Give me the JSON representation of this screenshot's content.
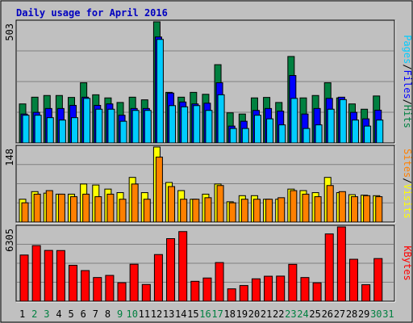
{
  "title": "Daily usage for April 2016",
  "colors": {
    "background": "#C0C0C0",
    "title_text": "#0000C0",
    "hits": "#00CCFF",
    "files": "#0000FF",
    "pages": "#008040",
    "visits": "#FFFF00",
    "sites": "#FF8000",
    "kbytes": "#FF0000",
    "weekend_day": "#008040"
  },
  "right_labels": {
    "top": [
      {
        "text": "Pages",
        "color": "#00CCFF"
      },
      {
        "text": "/",
        "color": "#000000"
      },
      {
        "text": "Files",
        "color": "#0000FF"
      },
      {
        "text": "/",
        "color": "#000000"
      },
      {
        "text": "Hits",
        "color": "#008040"
      }
    ],
    "mid": [
      {
        "text": "Sites",
        "color": "#FF8000"
      },
      {
        "text": "/",
        "color": "#000000"
      },
      {
        "text": "Visits",
        "color": "#FFFF00"
      }
    ],
    "bottom": [
      {
        "text": "KBytes",
        "color": "#FF0000"
      }
    ]
  },
  "chart_data": [
    {
      "type": "bar",
      "title": "Daily usage for April 2016",
      "max_label": "503",
      "ylim": [
        0,
        503
      ],
      "categories": [
        "1",
        "2",
        "3",
        "4",
        "5",
        "6",
        "7",
        "8",
        "9",
        "10",
        "11",
        "12",
        "13",
        "14",
        "15",
        "16",
        "17",
        "18",
        "19",
        "20",
        "21",
        "22",
        "23",
        "24",
        "25",
        "26",
        "27",
        "28",
        "29",
        "30",
        "31"
      ],
      "series": [
        {
          "name": "Hits",
          "values": [
            162,
            190,
            197,
            197,
            189,
            250,
            200,
            187,
            168,
            190,
            179,
            503,
            210,
            190,
            210,
            202,
            325,
            125,
            120,
            187,
            189,
            168,
            359,
            187,
            197,
            250,
            187,
            162,
            140,
            195,
            0
          ]
        },
        {
          "name": "Files",
          "values": [
            120,
            127,
            143,
            143,
            156,
            190,
            156,
            162,
            115,
            143,
            143,
            440,
            207,
            170,
            162,
            165,
            250,
            70,
            90,
            135,
            143,
            132,
            280,
            120,
            143,
            185,
            190,
            127,
            100,
            136,
            0
          ]
        },
        {
          "name": "Pages",
          "values": [
            115,
            115,
            105,
            95,
            105,
            185,
            140,
            140,
            90,
            135,
            135,
            430,
            155,
            150,
            155,
            135,
            200,
            60,
            60,
            115,
            100,
            75,
            185,
            60,
            75,
            140,
            180,
            95,
            70,
            95,
            0
          ]
        }
      ]
    },
    {
      "type": "bar",
      "max_label": "148",
      "ylim": [
        0,
        148
      ],
      "categories": [
        "1",
        "2",
        "3",
        "4",
        "5",
        "6",
        "7",
        "8",
        "9",
        "10",
        "11",
        "12",
        "13",
        "14",
        "15",
        "16",
        "17",
        "18",
        "19",
        "20",
        "21",
        "22",
        "23",
        "24",
        "25",
        "26",
        "27",
        "28",
        "29",
        "30",
        "31"
      ],
      "series": [
        {
          "name": "Visits",
          "values": [
            45,
            60,
            57,
            55,
            55,
            75,
            73,
            65,
            58,
            88,
            58,
            148,
            78,
            62,
            45,
            55,
            75,
            40,
            52,
            52,
            45,
            45,
            65,
            62,
            58,
            88,
            58,
            54,
            53,
            52,
            0
          ]
        },
        {
          "name": "Sites",
          "values": [
            38,
            55,
            62,
            55,
            50,
            55,
            50,
            55,
            45,
            75,
            45,
            128,
            70,
            45,
            45,
            48,
            72,
            38,
            45,
            45,
            45,
            48,
            62,
            55,
            50,
            72,
            60,
            50,
            52,
            50,
            0
          ]
        }
      ]
    },
    {
      "type": "bar",
      "max_label": "6305",
      "ylim": [
        0,
        6305
      ],
      "categories": [
        "1",
        "2",
        "3",
        "4",
        "5",
        "6",
        "7",
        "8",
        "9",
        "10",
        "11",
        "12",
        "13",
        "14",
        "15",
        "16",
        "17",
        "18",
        "19",
        "20",
        "21",
        "22",
        "23",
        "24",
        "25",
        "26",
        "27",
        "28",
        "29",
        "30",
        "31"
      ],
      "series": [
        {
          "name": "KBytes",
          "values": [
            3920,
            4720,
            4310,
            4300,
            3050,
            2600,
            2010,
            2190,
            1570,
            3140,
            1420,
            3960,
            5310,
            5910,
            1690,
            1970,
            3280,
            1050,
            1330,
            1900,
            2120,
            2130,
            3130,
            2010,
            1560,
            5710,
            6305,
            3560,
            1400,
            3620,
            0
          ]
        }
      ]
    }
  ],
  "day_labels": [
    {
      "text": "1",
      "weekend": false
    },
    {
      "text": "2",
      "weekend": true
    },
    {
      "text": "3",
      "weekend": true
    },
    {
      "text": "4",
      "weekend": false
    },
    {
      "text": "5",
      "weekend": false
    },
    {
      "text": "6",
      "weekend": false
    },
    {
      "text": "7",
      "weekend": false
    },
    {
      "text": "8",
      "weekend": false
    },
    {
      "text": "9",
      "weekend": true
    },
    {
      "text": "10",
      "weekend": true
    },
    {
      "text": "11",
      "weekend": false
    },
    {
      "text": "12",
      "weekend": false
    },
    {
      "text": "13",
      "weekend": false
    },
    {
      "text": "14",
      "weekend": false
    },
    {
      "text": "15",
      "weekend": false
    },
    {
      "text": "16",
      "weekend": true
    },
    {
      "text": "17",
      "weekend": true
    },
    {
      "text": "18",
      "weekend": false
    },
    {
      "text": "19",
      "weekend": false
    },
    {
      "text": "20",
      "weekend": false
    },
    {
      "text": "21",
      "weekend": false
    },
    {
      "text": "22",
      "weekend": false
    },
    {
      "text": "23",
      "weekend": true
    },
    {
      "text": "24",
      "weekend": true
    },
    {
      "text": "25",
      "weekend": false
    },
    {
      "text": "26",
      "weekend": false
    },
    {
      "text": "27",
      "weekend": false
    },
    {
      "text": "28",
      "weekend": false
    },
    {
      "text": "29",
      "weekend": false
    },
    {
      "text": "30",
      "weekend": true
    },
    {
      "text": "31",
      "weekend": true
    }
  ]
}
